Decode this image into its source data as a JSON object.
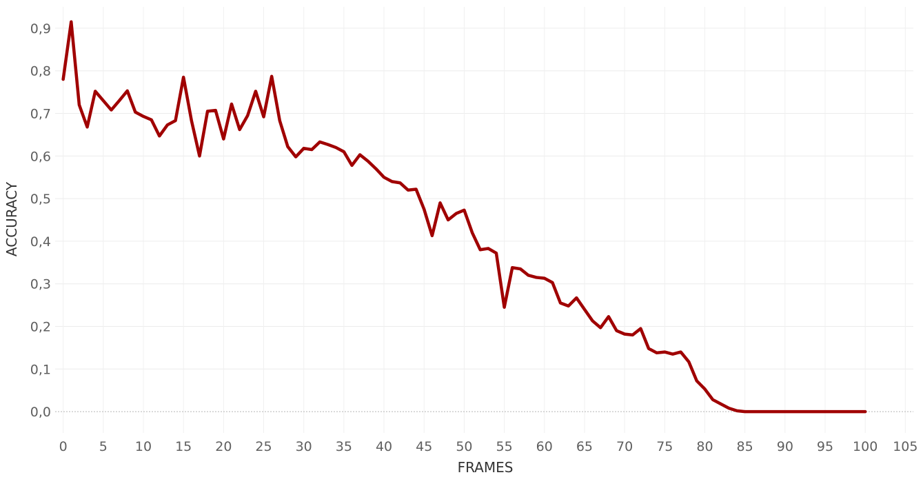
{
  "chart_data": {
    "type": "line",
    "xlabel": "FRAMES",
    "ylabel": "ACCURACY",
    "xlim": [
      -1,
      106
    ],
    "ylim": [
      -0.05,
      0.95
    ],
    "x_ticks": [
      0,
      5,
      10,
      15,
      20,
      25,
      30,
      35,
      40,
      45,
      50,
      55,
      60,
      65,
      70,
      75,
      80,
      85,
      90,
      95,
      100,
      105
    ],
    "x_tick_labels": [
      "0",
      "5",
      "10",
      "15",
      "20",
      "25",
      "30",
      "35",
      "40",
      "45",
      "50",
      "55",
      "60",
      "65",
      "70",
      "75",
      "80",
      "85",
      "90",
      "95",
      "100",
      "105"
    ],
    "y_ticks": [
      0,
      0.1,
      0.2,
      0.3,
      0.4,
      0.5,
      0.6,
      0.7,
      0.8,
      0.9
    ],
    "y_tick_labels": [
      "0,0",
      "0,1",
      "0,2",
      "0,3",
      "0,4",
      "0,5",
      "0,6",
      "0,7",
      "0,8",
      "0,9"
    ],
    "grid": true,
    "line_color": "#a00000",
    "series": [
      {
        "x": [
          0,
          1,
          2,
          3,
          4,
          5,
          6,
          7,
          8,
          9,
          10,
          11,
          12,
          13,
          14,
          15,
          16,
          17,
          18,
          19,
          20,
          21,
          22,
          23,
          24,
          25,
          26,
          27,
          28,
          29,
          30,
          31,
          32,
          33,
          34,
          35,
          36,
          37,
          38,
          39,
          40,
          41,
          42,
          43,
          44,
          45,
          46,
          47,
          48,
          49,
          50,
          51,
          52,
          53,
          54,
          55,
          56,
          57,
          58,
          59,
          60,
          61,
          62,
          63,
          64,
          65,
          66,
          67,
          68,
          69,
          70,
          71,
          72,
          73,
          74,
          75,
          76,
          77,
          78,
          79,
          80,
          81,
          82,
          83,
          84,
          85,
          86,
          87,
          88,
          89,
          90,
          91,
          92,
          93,
          94,
          95,
          96,
          97,
          98,
          99,
          100
        ],
        "values": [
          0.78,
          0.915,
          0.72,
          0.668,
          0.752,
          0.73,
          0.708,
          0.73,
          0.753,
          0.703,
          0.693,
          0.685,
          0.647,
          0.673,
          0.683,
          0.785,
          0.683,
          0.6,
          0.705,
          0.707,
          0.64,
          0.722,
          0.662,
          0.695,
          0.752,
          0.692,
          0.787,
          0.683,
          0.622,
          0.598,
          0.618,
          0.615,
          0.633,
          0.627,
          0.62,
          0.61,
          0.578,
          0.603,
          0.588,
          0.57,
          0.55,
          0.54,
          0.537,
          0.52,
          0.522,
          0.475,
          0.413,
          0.49,
          0.45,
          0.465,
          0.473,
          0.42,
          0.38,
          0.383,
          0.372,
          0.245,
          0.338,
          0.335,
          0.32,
          0.315,
          0.313,
          0.303,
          0.255,
          0.248,
          0.267,
          0.24,
          0.213,
          0.197,
          0.223,
          0.19,
          0.182,
          0.18,
          0.195,
          0.148,
          0.138,
          0.14,
          0.135,
          0.14,
          0.117,
          0.072,
          0.053,
          0.028,
          0.018,
          0.008,
          0.002,
          0,
          0,
          0,
          0,
          0,
          0,
          0,
          0,
          0,
          0,
          0,
          0,
          0,
          0,
          0,
          0
        ]
      }
    ]
  }
}
